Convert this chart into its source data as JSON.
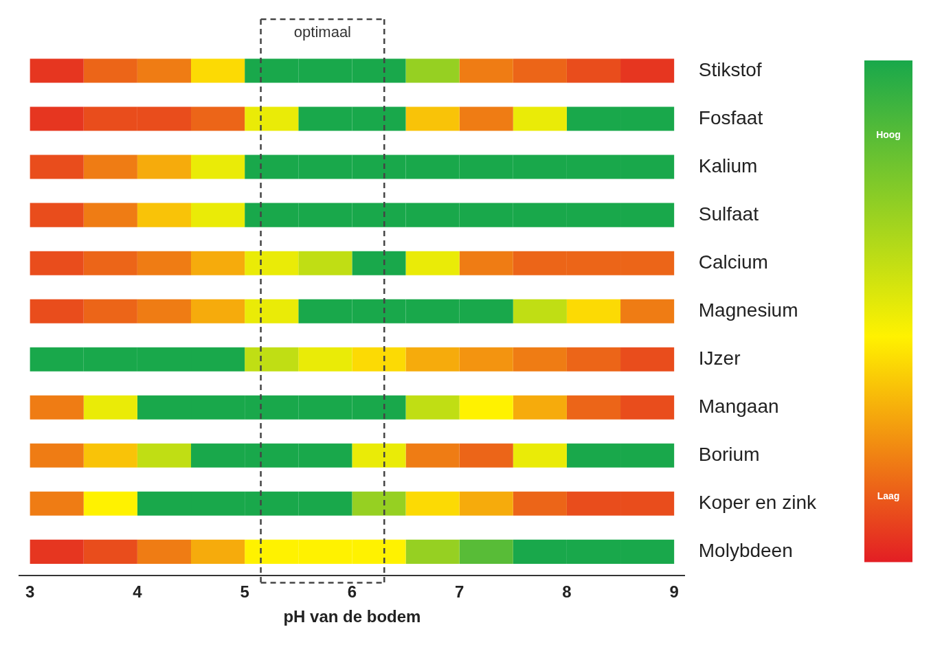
{
  "chart_data": {
    "type": "heatmap",
    "xlabel": "pH van de bodem",
    "x": [
      3.25,
      3.75,
      4.25,
      4.75,
      5.25,
      5.75,
      6.25,
      6.75,
      7.25,
      7.75,
      8.25,
      8.75
    ],
    "y_categories": [
      "Stikstof",
      "Fosfaat",
      "Kalium",
      "Sulfaat",
      "Calcium",
      "Magnesium",
      "IJzer",
      "Mangaan",
      "Borium",
      "Koper en zink",
      "Molybdeen"
    ],
    "cells": [
      [
        0.05,
        0.15,
        0.2,
        0.4,
        1,
        1,
        1,
        0.7,
        0.2,
        0.15,
        0.1,
        0.05
      ],
      [
        0.05,
        0.1,
        0.1,
        0.15,
        0.5,
        1,
        1,
        0.35,
        0.2,
        0.5,
        1,
        1
      ],
      [
        0.1,
        0.2,
        0.3,
        0.5,
        1,
        1,
        1,
        1,
        1,
        1,
        1,
        1
      ],
      [
        0.1,
        0.2,
        0.35,
        0.5,
        1,
        1,
        1,
        1,
        1,
        1,
        1,
        1
      ],
      [
        0.1,
        0.15,
        0.2,
        0.3,
        0.5,
        0.6,
        1,
        0.5,
        0.2,
        0.15,
        0.15,
        0.15
      ],
      [
        0.1,
        0.15,
        0.2,
        0.3,
        0.5,
        1,
        1,
        1,
        1,
        0.6,
        0.4,
        0.2
      ],
      [
        1,
        1,
        1,
        1,
        0.6,
        0.5,
        0.4,
        0.3,
        0.25,
        0.2,
        0.15,
        0.1
      ],
      [
        0.2,
        0.5,
        1,
        1,
        1,
        1,
        1,
        0.6,
        0.45,
        0.3,
        0.15,
        0.1
      ],
      [
        0.2,
        0.35,
        0.6,
        1,
        1,
        1,
        0.5,
        0.2,
        0.15,
        0.5,
        1,
        1
      ],
      [
        0.2,
        0.45,
        1,
        1,
        1,
        1,
        0.7,
        0.4,
        0.3,
        0.15,
        0.1,
        0.1
      ],
      [
        0.05,
        0.1,
        0.2,
        0.3,
        0.45,
        0.45,
        0.45,
        0.7,
        0.85,
        1,
        1,
        1
      ]
    ],
    "xlim": [
      2.9,
      9.1
    ],
    "xticks": [
      3,
      4,
      5,
      6,
      7,
      8,
      9
    ],
    "clim": [
      0,
      1
    ],
    "cticks": [
      {
        "value": 0.85,
        "label": "Hoog"
      },
      {
        "value": 0.13,
        "label": "Laag"
      }
    ],
    "ref_lines": [
      {
        "axis": "x",
        "value": 5.15,
        "line_style": "dashed",
        "color": "#444444"
      },
      {
        "axis": "x",
        "value": 6.3,
        "line_style": "dashed",
        "color": "#444444"
      }
    ],
    "annotations": [
      "optimaal"
    ],
    "grid": false
  }
}
